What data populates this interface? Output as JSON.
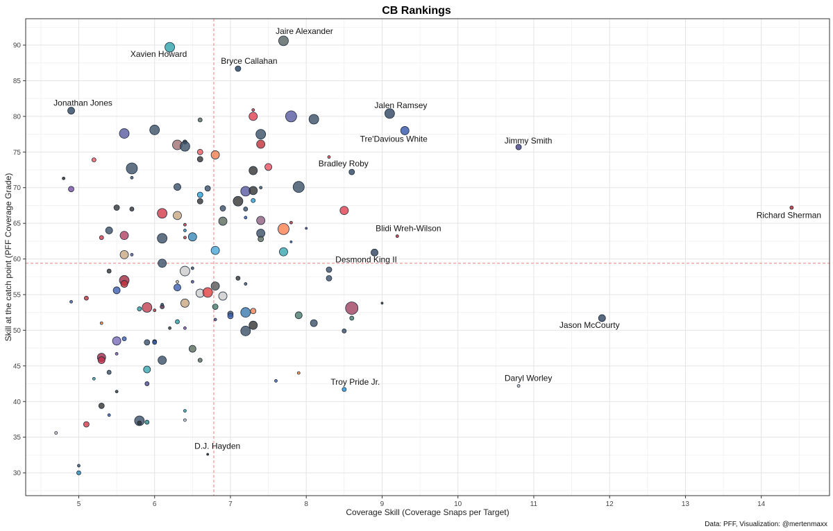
{
  "chart_data": {
    "type": "scatter",
    "title": "CB Rankings",
    "xlabel": "Coverage Skill (Coverage Snaps per Target)",
    "ylabel": "Skill at the catch point (PFF Coverage Grade)",
    "caption": "Data: PFF, Visualization: @mertenmaxx",
    "xlim": [
      4.3,
      14.9
    ],
    "ylim": [
      26.8,
      93.7
    ],
    "x_ticks": [
      5,
      6,
      7,
      8,
      9,
      10,
      11,
      12,
      13,
      14
    ],
    "y_ticks": [
      30,
      35,
      40,
      45,
      50,
      55,
      60,
      65,
      70,
      75,
      80,
      85,
      90
    ],
    "grid": true,
    "reference_lines": {
      "x": 6.78,
      "y": 59.4
    },
    "labeled_points": [
      {
        "label": "Jaire Alexander",
        "x": 7.7,
        "y": 90.6,
        "size": 7,
        "color": "#5f6b6a"
      },
      {
        "label": "Xavien Howard",
        "x": 6.2,
        "y": 89.7,
        "size": 7,
        "color": "#3aa8b0"
      },
      {
        "label": "Bryce Callahan",
        "x": 7.1,
        "y": 86.7,
        "size": 4,
        "color": "#2f4a6a"
      },
      {
        "label": "Jonathan Jones",
        "x": 4.9,
        "y": 80.8,
        "size": 5,
        "color": "#3b5068"
      },
      {
        "label": "Jalen Ramsey",
        "x": 9.1,
        "y": 80.4,
        "size": 7,
        "color": "#3b5068"
      },
      {
        "label": "Tre'Davious White",
        "x": 9.3,
        "y": 78.0,
        "size": 6,
        "color": "#3d5fb0"
      },
      {
        "label": "Jimmy Smith",
        "x": 10.8,
        "y": 75.7,
        "size": 4,
        "color": "#4e4a8a"
      },
      {
        "label": "Bradley Roby",
        "x": 8.6,
        "y": 72.2,
        "size": 4,
        "color": "#3b5068"
      },
      {
        "label": "Richard Sherman",
        "x": 14.4,
        "y": 67.2,
        "size": 2.5,
        "color": "#c0303a"
      },
      {
        "label": "Blidi Wreh-Wilson",
        "x": 9.2,
        "y": 63.2,
        "size": 2,
        "color": "#c0303a"
      },
      {
        "label": "Desmond King II",
        "x": 8.9,
        "y": 60.9,
        "size": 5,
        "color": "#3b5068"
      },
      {
        "label": "Jason McCourty",
        "x": 11.9,
        "y": 51.7,
        "size": 5,
        "color": "#3b5068"
      },
      {
        "label": "Troy Pride Jr.",
        "x": 8.5,
        "y": 41.7,
        "size": 3,
        "color": "#2a9ad8"
      },
      {
        "label": "Daryl Worley",
        "x": 10.8,
        "y": 42.2,
        "size": 2,
        "color": "#bbbbbb"
      },
      {
        "label": "D.J. Hayden",
        "x": 6.7,
        "y": 32.6,
        "size": 1.5,
        "color": "#222222"
      }
    ],
    "points": [
      [
        4.7,
        35.6,
        2,
        "#bbbbbb"
      ],
      [
        4.8,
        71.3,
        2,
        "#222222"
      ],
      [
        4.9,
        69.8,
        4,
        "#7a4fa6"
      ],
      [
        4.9,
        54.0,
        2,
        "#3d5fb0"
      ],
      [
        5.0,
        31.0,
        2,
        "#3b5068"
      ],
      [
        5.0,
        30.0,
        3,
        "#2a8ab8"
      ],
      [
        5.1,
        36.8,
        4,
        "#d43a48"
      ],
      [
        5.1,
        54.5,
        3,
        "#c0303a"
      ],
      [
        5.2,
        73.9,
        3,
        "#f05a60"
      ],
      [
        5.2,
        43.2,
        2,
        "#2aa0a0"
      ],
      [
        5.3,
        63.0,
        3,
        "#d43a48"
      ],
      [
        5.3,
        51.0,
        2,
        "#f08030"
      ],
      [
        5.3,
        46.2,
        6,
        "#9a2a48"
      ],
      [
        5.3,
        45.8,
        5,
        "#c0304a"
      ],
      [
        5.3,
        39.4,
        4,
        "#333333"
      ],
      [
        5.4,
        64.0,
        5,
        "#3b5068"
      ],
      [
        5.4,
        58.3,
        3,
        "#333333"
      ],
      [
        5.4,
        44.1,
        3,
        "#3b5068"
      ],
      [
        5.4,
        38.1,
        2,
        "#3d5fb0"
      ],
      [
        5.5,
        67.2,
        4,
        "#333333"
      ],
      [
        5.5,
        55.6,
        5,
        "#3d5fb0"
      ],
      [
        5.5,
        48.5,
        6,
        "#7a6ab8"
      ],
      [
        5.5,
        46.7,
        2,
        "#7a4fa6"
      ],
      [
        5.5,
        41.4,
        2,
        "#333333"
      ],
      [
        5.6,
        77.6,
        7,
        "#5a5aa0"
      ],
      [
        5.6,
        63.3,
        6,
        "#b04060"
      ],
      [
        5.6,
        60.6,
        6,
        "#c8a880"
      ],
      [
        5.6,
        57.0,
        7,
        "#a02a40"
      ],
      [
        5.6,
        56.5,
        5,
        "#c0303a"
      ],
      [
        5.6,
        48.8,
        3,
        "#3d5fb0"
      ],
      [
        5.7,
        72.7,
        8,
        "#3b5068"
      ],
      [
        5.7,
        71.4,
        2,
        "#3b5068"
      ],
      [
        5.7,
        67.0,
        3,
        "#333333"
      ],
      [
        5.7,
        60.6,
        2,
        "#5a5aa0"
      ],
      [
        5.8,
        53.0,
        3,
        "#2aa0a0"
      ],
      [
        5.8,
        37.3,
        7,
        "#3b5068"
      ],
      [
        5.8,
        37.0,
        3,
        "#333333"
      ],
      [
        5.9,
        53.2,
        7,
        "#c04050"
      ],
      [
        5.9,
        48.3,
        4,
        "#3b5068"
      ],
      [
        5.9,
        44.5,
        5,
        "#3aa8b0"
      ],
      [
        5.9,
        42.5,
        3,
        "#4e4a8a"
      ],
      [
        5.9,
        37.1,
        3,
        "#2a8a8a"
      ],
      [
        6.0,
        78.1,
        7,
        "#3b5068"
      ],
      [
        6.0,
        52.8,
        2,
        "#c0303a"
      ],
      [
        6.0,
        48.4,
        3,
        "#333333"
      ],
      [
        6.0,
        48.3,
        3,
        "#3d5fb0"
      ],
      [
        6.1,
        66.4,
        7,
        "#d43a48"
      ],
      [
        6.1,
        62.9,
        7,
        "#3b5068"
      ],
      [
        6.1,
        59.4,
        6,
        "#3b5068"
      ],
      [
        6.1,
        53.3,
        3,
        "#5a2a48"
      ],
      [
        6.1,
        45.8,
        6,
        "#3b5068"
      ],
      [
        6.1,
        53.6,
        2,
        "#3b5068"
      ],
      [
        6.2,
        50.3,
        2,
        "#333333"
      ],
      [
        6.3,
        76.0,
        7,
        "#a07070"
      ],
      [
        6.3,
        70.1,
        5,
        "#3b5068"
      ],
      [
        6.3,
        66.1,
        6,
        "#c8a880"
      ],
      [
        6.3,
        56.0,
        5,
        "#3d5fb0"
      ],
      [
        6.3,
        56.8,
        2,
        "#c8a880"
      ],
      [
        6.3,
        51.2,
        3,
        "#2aa0a0"
      ],
      [
        6.4,
        76.4,
        3,
        "#333333"
      ],
      [
        6.4,
        75.8,
        7,
        "#3b5068"
      ],
      [
        6.4,
        64.8,
        2,
        "#c0303a"
      ],
      [
        6.4,
        64.0,
        2,
        "#2a8ab8"
      ],
      [
        6.4,
        63.0,
        2,
        "#c0303a"
      ],
      [
        6.4,
        58.3,
        7,
        "#cccccc"
      ],
      [
        6.4,
        53.8,
        6,
        "#c8a880"
      ],
      [
        6.4,
        50.3,
        2,
        "#7a4fa6"
      ],
      [
        6.4,
        38.7,
        2,
        "#2aa0a0"
      ],
      [
        6.4,
        37.4,
        2,
        "#bbbbbb"
      ],
      [
        6.5,
        63.1,
        6,
        "#3a8ab8"
      ],
      [
        6.5,
        58.7,
        2,
        "#3b5068"
      ],
      [
        6.5,
        56.8,
        2,
        "#4e4a8a"
      ],
      [
        6.5,
        47.4,
        5,
        "#5a6a5a"
      ],
      [
        6.6,
        79.5,
        3,
        "#5a6a5a"
      ],
      [
        6.6,
        75.0,
        4,
        "#f05a60"
      ],
      [
        6.6,
        74.0,
        4,
        "#333333"
      ],
      [
        6.6,
        69.0,
        4,
        "#2aa0d8"
      ],
      [
        6.6,
        68.1,
        4,
        "#333333"
      ],
      [
        6.6,
        55.2,
        6,
        "#cccccc"
      ],
      [
        6.6,
        45.8,
        3,
        "#5a6a5a"
      ],
      [
        6.7,
        69.9,
        4,
        "#3b5068"
      ],
      [
        6.7,
        55.3,
        7,
        "#e04040"
      ],
      [
        6.8,
        74.6,
        6,
        "#f08050"
      ],
      [
        6.8,
        61.2,
        6,
        "#4aa8d8"
      ],
      [
        6.8,
        56.2,
        6,
        "#555555"
      ],
      [
        6.8,
        53.3,
        4,
        "#4a7a6a"
      ],
      [
        6.8,
        51.5,
        2,
        "#4e4a8a"
      ],
      [
        6.9,
        67.1,
        4,
        "#3b5068"
      ],
      [
        6.9,
        65.3,
        6,
        "#5a6a5a"
      ],
      [
        6.9,
        54.8,
        6,
        "#cccccc"
      ],
      [
        7.0,
        52.3,
        4,
        "#3b5068"
      ],
      [
        7.0,
        52.0,
        4,
        "#3d5fb0"
      ],
      [
        7.1,
        68.1,
        7,
        "#333333"
      ],
      [
        7.1,
        57.3,
        3,
        "#333333"
      ],
      [
        7.2,
        69.5,
        7,
        "#5a5aa0"
      ],
      [
        7.2,
        67.0,
        3,
        "#3b5068"
      ],
      [
        7.2,
        65.8,
        2,
        "#3d5fb0"
      ],
      [
        7.2,
        56.5,
        2,
        "#3b5068"
      ],
      [
        7.2,
        52.5,
        7,
        "#3a7ab0"
      ],
      [
        7.2,
        49.9,
        7,
        "#3b5068"
      ],
      [
        7.3,
        80.9,
        2,
        "#c0303a"
      ],
      [
        7.3,
        80.0,
        6,
        "#e04050"
      ],
      [
        7.3,
        72.4,
        6,
        "#333333"
      ],
      [
        7.3,
        69.6,
        6,
        "#333333"
      ],
      [
        7.3,
        68.2,
        3,
        "#2aa0d8"
      ],
      [
        7.3,
        52.7,
        4,
        "#f08050"
      ],
      [
        7.3,
        50.7,
        6,
        "#333333"
      ],
      [
        7.4,
        77.5,
        7,
        "#3b5068"
      ],
      [
        7.4,
        76.1,
        6,
        "#c0303a"
      ],
      [
        7.4,
        70.0,
        2,
        "#3b5068"
      ],
      [
        7.4,
        65.4,
        6,
        "#906080"
      ],
      [
        7.4,
        63.6,
        6,
        "#3b5068"
      ],
      [
        7.4,
        62.8,
        4,
        "#5a6a5a"
      ],
      [
        7.5,
        72.9,
        5,
        "#f05060"
      ],
      [
        7.7,
        64.2,
        8,
        "#ff8050"
      ],
      [
        7.7,
        61.0,
        6,
        "#3aa8b0"
      ],
      [
        7.8,
        80.0,
        8,
        "#5a5aa0"
      ],
      [
        7.8,
        65.1,
        2,
        "#c0303a"
      ],
      [
        7.8,
        62.4,
        1.5,
        "#3d5fb0"
      ],
      [
        7.9,
        70.1,
        8,
        "#3b5068"
      ],
      [
        7.9,
        52.1,
        5,
        "#4a7a6a"
      ],
      [
        7.9,
        44.0,
        2,
        "#f08030"
      ],
      [
        8.0,
        64.3,
        1.5,
        "#4e4a8a"
      ],
      [
        8.1,
        79.6,
        7,
        "#3b5068"
      ],
      [
        8.1,
        51.0,
        5,
        "#3b5068"
      ],
      [
        8.3,
        74.3,
        2,
        "#d43a48"
      ],
      [
        8.3,
        58.5,
        4,
        "#3b5068"
      ],
      [
        8.3,
        57.3,
        4,
        "#3b5068"
      ],
      [
        8.5,
        66.8,
        6,
        "#e04050"
      ],
      [
        8.5,
        49.9,
        3,
        "#3b5068"
      ],
      [
        8.6,
        53.1,
        9,
        "#a04060"
      ],
      [
        8.6,
        51.7,
        3,
        "#4a7a6a"
      ],
      [
        9.0,
        53.8,
        1.5,
        "#333333"
      ],
      [
        7.6,
        42.9,
        2,
        "#3d5fb0"
      ]
    ]
  }
}
